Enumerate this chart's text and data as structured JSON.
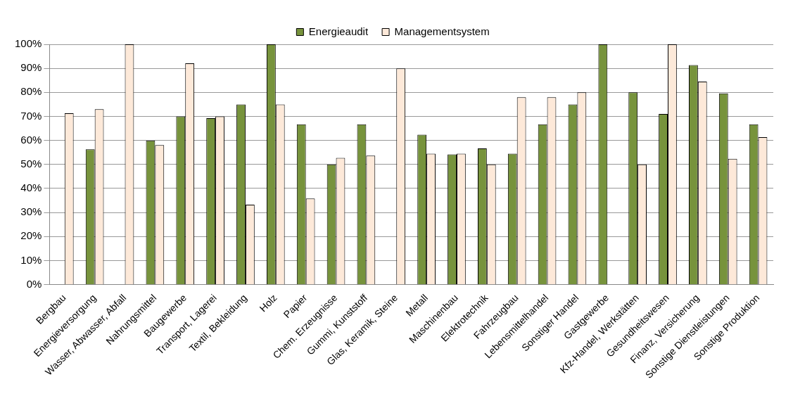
{
  "chart_data": {
    "type": "bar",
    "categories": [
      "Bergbau",
      "Energieversorgung",
      "Wasser, Abwasser, Abfall",
      "Nahrungsmittel",
      "Baugewerbe",
      "Transport, Lagerei",
      "Textil, Bekleidung",
      "Holz",
      "Papier",
      "Chem. Erzeugnisse",
      "Gummi, Kunststoff",
      "Glas, Keramik, Steine",
      "Metall",
      "Maschinenbau",
      "Elektrotechnik",
      "Fahrzeugbau",
      "Lebensmittelhandel",
      "Sonstiger Handel",
      "Gastgewerbe",
      "Kfz-Handel, Werkstätten",
      "Gesundheitswesen",
      "Finanz, Versicherung",
      "Sonstige Dienstleistungen",
      "Sonstige Produktion"
    ],
    "series": [
      {
        "name": "Energieaudit",
        "color": "#77933c",
        "values": [
          null,
          56.3,
          null,
          60,
          70,
          69.3,
          75,
          100,
          66.7,
          50,
          66.7,
          null,
          62.4,
          54.2,
          56.7,
          54.5,
          66.7,
          75,
          100,
          80,
          71,
          91.4,
          79.6,
          66.7
        ]
      },
      {
        "name": "Managementsystem",
        "color": "#fde9d9",
        "values": [
          71.3,
          73,
          100,
          58.1,
          92.1,
          70,
          33.3,
          75,
          35.8,
          52.7,
          53.7,
          90,
          54.5,
          54.5,
          50,
          78,
          78,
          80,
          null,
          50,
          100,
          84.5,
          52.4,
          61.4
        ]
      }
    ],
    "ylim": [
      0,
      100
    ],
    "yticks": [
      {
        "value": 0,
        "label": "0%"
      },
      {
        "value": 10,
        "label": "10%"
      },
      {
        "value": 20,
        "label": "20%"
      },
      {
        "value": 30,
        "label": "30%"
      },
      {
        "value": 40,
        "label": "40%"
      },
      {
        "value": 50,
        "label": "50%"
      },
      {
        "value": 60,
        "label": "60%"
      },
      {
        "value": 70,
        "label": "70%"
      },
      {
        "value": 80,
        "label": "80%"
      },
      {
        "value": 90,
        "label": "90%"
      },
      {
        "value": 100,
        "label": "100%"
      }
    ],
    "grid": "y",
    "legend": "top"
  }
}
